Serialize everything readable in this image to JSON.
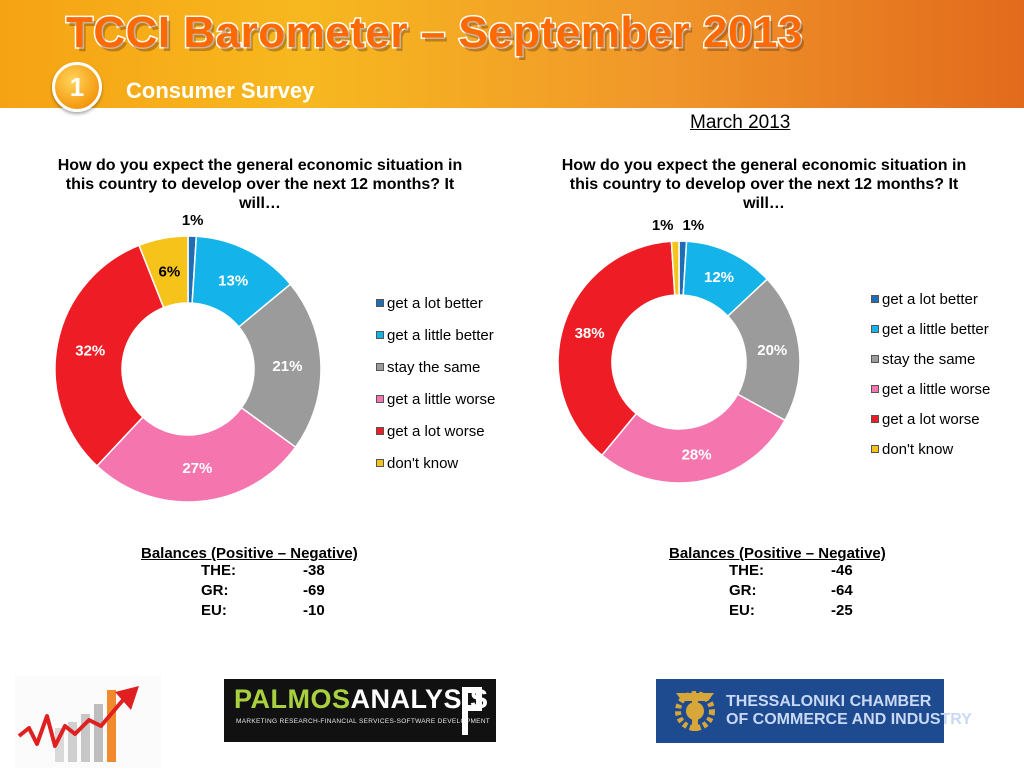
{
  "header": {
    "title": "TCCI Barometer – September 2013",
    "badge": "1",
    "subtitle": "Consumer Survey"
  },
  "colors": {
    "get a lot better": "#1f6db5",
    "get a little better": "#14b4ea",
    "stay the same": "#9b9b9b",
    "get a little worse": "#f576ae",
    "get a lot worse": "#ee1c25",
    "don't know": "#f6c31b"
  },
  "right_period": "March 2013",
  "chart_data": [
    {
      "type": "pie",
      "style": "donut",
      "title": "How do you expect the general economic situation in this country to develop over the next 12 months? It will…",
      "categories": [
        "get a lot better",
        "get a little better",
        "stay the same",
        "get a little worse",
        "get a lot worse",
        "don't know"
      ],
      "values": [
        1,
        13,
        21,
        27,
        32,
        6
      ],
      "labels": [
        "1%",
        "13%",
        "21%",
        "27%",
        "32%",
        "6%"
      ],
      "legend_position": "right"
    },
    {
      "type": "pie",
      "style": "donut",
      "title": "How do you expect the general economic situation in this country to develop over the next 12 months? It will…",
      "categories": [
        "get a lot better",
        "get a little better",
        "stay the same",
        "get a little worse",
        "get a lot worse",
        "don't know"
      ],
      "values": [
        1,
        12,
        20,
        28,
        38,
        1
      ],
      "labels": [
        "1%",
        "12%",
        "20%",
        "28%",
        "38%",
        "1%"
      ],
      "legend_position": "right"
    }
  ],
  "balances": [
    {
      "title": "Balances (Positive – Negative)",
      "rows": [
        {
          "region": "THE:",
          "value": "-38"
        },
        {
          "region": "GR:",
          "value": "-69"
        },
        {
          "region": "EU:",
          "value": "-10"
        }
      ]
    },
    {
      "title": "Balances (Positive – Negative)",
      "rows": [
        {
          "region": "THE:",
          "value": "-46"
        },
        {
          "region": "GR:",
          "value": "-64"
        },
        {
          "region": "EU:",
          "value": "-25"
        }
      ]
    }
  ],
  "logos": {
    "palmos_name_a": "PALMOS",
    "palmos_name_b": "ANALYSIS",
    "palmos_tagline": "MARKETING RESEARCH-FINANCIAL SERVICES-SOFTWARE DEVELOPMENT",
    "tcci_line1": "THESSALONIKI CHAMBER",
    "tcci_line2": "OF COMMERCE AND INDUSTRY"
  }
}
